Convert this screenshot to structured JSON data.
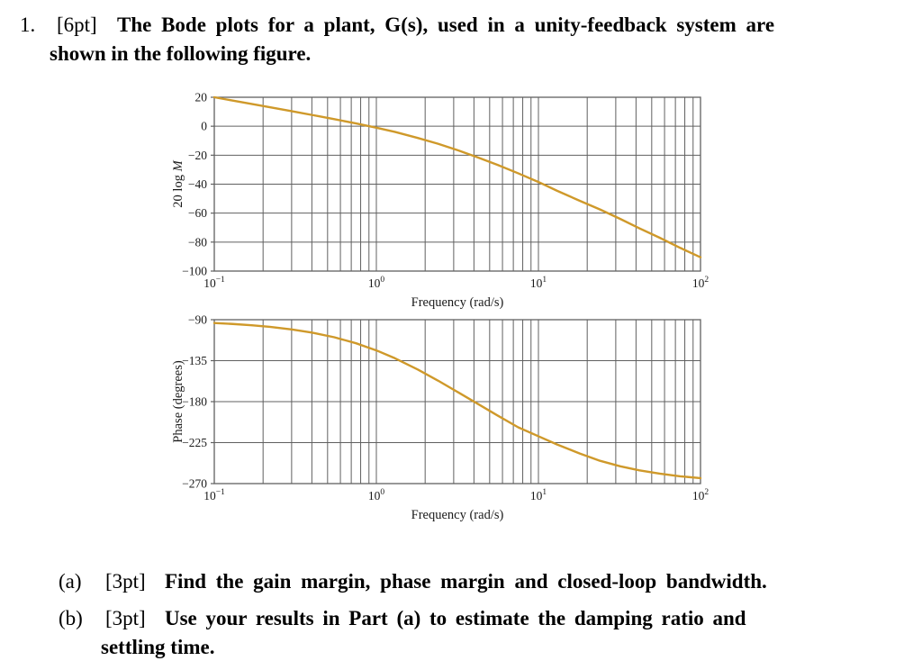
{
  "problem": {
    "number": "1.",
    "points": "[6pt]",
    "statement_line1": "The Bode plots for a plant, G(s), used in a unity-feedback system are",
    "statement_line2": "shown in the following figure."
  },
  "parts": [
    {
      "label": "(a)",
      "points": "[3pt]",
      "text_line1": "Find the gain margin, phase margin and closed-loop bandwidth.",
      "text_line2": ""
    },
    {
      "label": "(b)",
      "points": "[3pt]",
      "text_line1": "Use your results in Part (a) to estimate the damping ratio and",
      "text_line2": "settling time."
    }
  ],
  "chart_data": [
    {
      "type": "line",
      "title": "",
      "xlabel": "Frequency (rad/s)",
      "ylabel_plain": "20 log ",
      "ylabel_italic": "M",
      "xscale": "log",
      "xlim": [
        0.1,
        100
      ],
      "ylim": [
        -100,
        20
      ],
      "yticks": [
        20,
        0,
        -20,
        -40,
        -60,
        -80,
        -100
      ],
      "xticks": [
        0.1,
        1,
        10,
        100
      ],
      "grid": true,
      "legend": "none",
      "grid_color": "#606060",
      "line_color": "#cf992a",
      "series": [
        {
          "name": "magnitude",
          "x": [
            0.1,
            0.13,
            0.17,
            0.22,
            0.3,
            0.4,
            0.55,
            0.75,
            1,
            1.3,
            1.8,
            2.4,
            3.2,
            4.2,
            5.6,
            7.5,
            10,
            13,
            18,
            24,
            32,
            42,
            56,
            75,
            100
          ],
          "y": [
            20,
            17.7,
            15.4,
            13.1,
            10.4,
            7.8,
            4.9,
            1.9,
            -1,
            -3.9,
            -8.1,
            -12.1,
            -16.7,
            -21.4,
            -26.7,
            -32.5,
            -38.5,
            -44.5,
            -51.5,
            -57.5,
            -64,
            -70.5,
            -77,
            -84,
            -90.5
          ]
        }
      ]
    },
    {
      "type": "line",
      "title": "",
      "xlabel": "Frequency (rad/s)",
      "ylabel_plain": "Phase (degrees)",
      "ylabel_italic": "",
      "xscale": "log",
      "xlim": [
        0.1,
        100
      ],
      "ylim": [
        -270,
        -90
      ],
      "yticks": [
        -90,
        -135,
        -180,
        -225,
        -270
      ],
      "xticks": [
        0.1,
        1,
        10,
        100
      ],
      "grid": true,
      "legend": "none",
      "grid_color": "#606060",
      "line_color": "#cf992a",
      "series": [
        {
          "name": "phase",
          "x": [
            0.1,
            0.13,
            0.17,
            0.22,
            0.3,
            0.4,
            0.55,
            0.75,
            1,
            1.3,
            1.8,
            2.4,
            3.2,
            4.2,
            5.6,
            7.5,
            10,
            13,
            18,
            24,
            32,
            42,
            56,
            75,
            100
          ],
          "y": [
            -93.6,
            -94.7,
            -96.1,
            -97.9,
            -100.7,
            -104.2,
            -109.3,
            -115.9,
            -123.7,
            -132.3,
            -144.7,
            -156.9,
            -169.8,
            -182.2,
            -195.3,
            -208.2,
            -218,
            -227,
            -237,
            -245,
            -251,
            -255.5,
            -259,
            -262,
            -264
          ]
        }
      ]
    }
  ]
}
